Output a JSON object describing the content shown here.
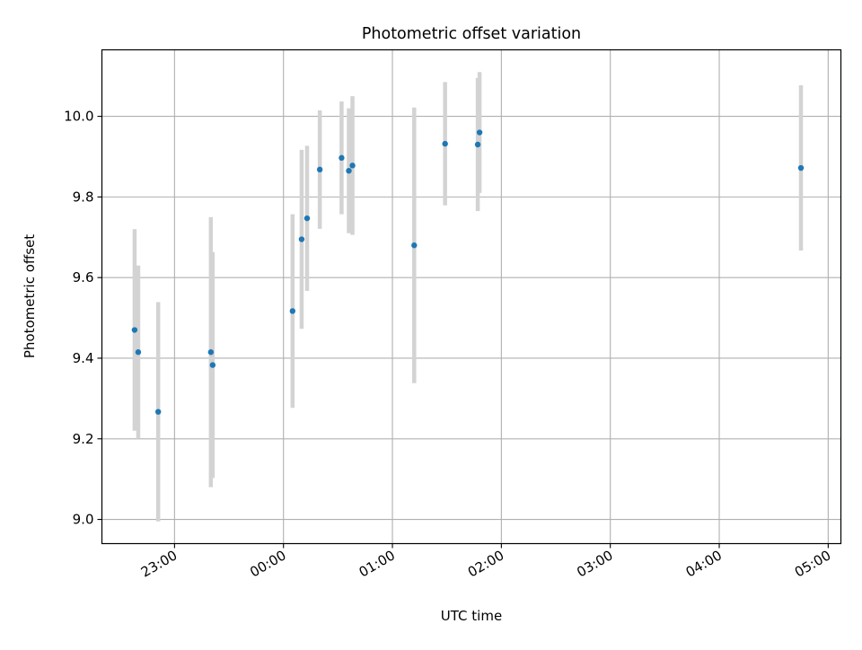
{
  "chart_data": {
    "type": "scatter",
    "title": "Photometric offset variation",
    "xlabel": "UTC time",
    "ylabel": "Photometric offset",
    "x_axis": {
      "kind": "time",
      "range": [
        "22:20",
        "05:07"
      ],
      "ticks": [
        "23:00",
        "00:00",
        "01:00",
        "02:00",
        "03:00",
        "04:00",
        "05:00"
      ]
    },
    "y_axis": {
      "range": [
        8.94,
        10.165
      ],
      "ticks": [
        "9.0",
        "9.2",
        "9.4",
        "9.6",
        "9.8",
        "10.0"
      ]
    },
    "grid": true,
    "colors": {
      "points": "#1f77b4",
      "errorbars": "#d3d3d3",
      "grid": "#b0b0b0",
      "axes": "#000000"
    },
    "points": [
      {
        "time": "22:38",
        "y": 9.47,
        "err": 0.25
      },
      {
        "time": "22:40",
        "y": 9.415,
        "err": 0.215
      },
      {
        "time": "22:51",
        "y": 9.267,
        "err": 0.272
      },
      {
        "time": "23:20",
        "y": 9.415,
        "err": 0.335
      },
      {
        "time": "23:21",
        "y": 9.383,
        "err": 0.28
      },
      {
        "time": "00:05",
        "y": 9.517,
        "err": 0.24
      },
      {
        "time": "00:10",
        "y": 9.695,
        "err": 0.222
      },
      {
        "time": "00:13",
        "y": 9.747,
        "err": 0.18
      },
      {
        "time": "00:20",
        "y": 9.868,
        "err": 0.147
      },
      {
        "time": "00:32",
        "y": 9.897,
        "err": 0.14
      },
      {
        "time": "00:36",
        "y": 9.865,
        "err": 0.155
      },
      {
        "time": "00:38",
        "y": 9.878,
        "err": 0.172
      },
      {
        "time": "01:12",
        "y": 9.68,
        "err": 0.342
      },
      {
        "time": "01:29",
        "y": 9.932,
        "err": 0.153
      },
      {
        "time": "01:47",
        "y": 9.93,
        "err": 0.165
      },
      {
        "time": "01:48",
        "y": 9.96,
        "err": 0.15
      },
      {
        "time": "04:45",
        "y": 9.872,
        "err": 0.205
      }
    ]
  }
}
